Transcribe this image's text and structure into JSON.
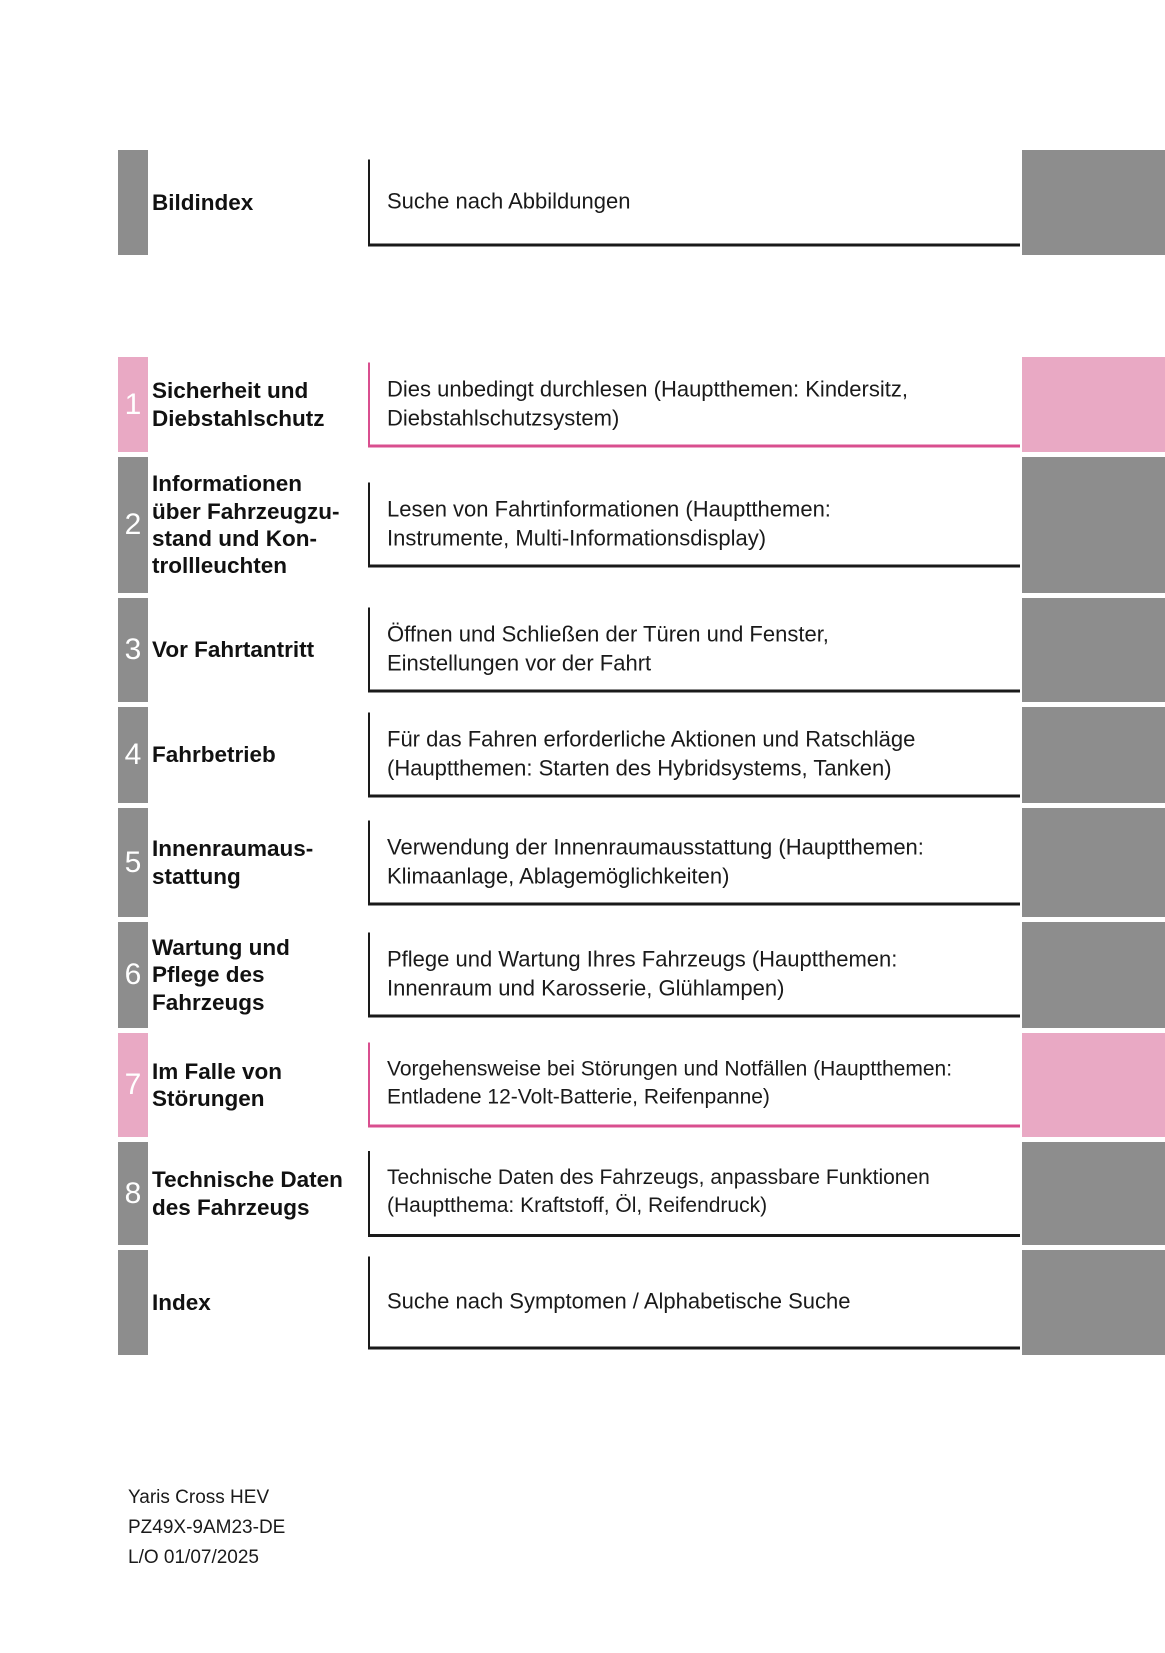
{
  "rows": [
    {
      "number": "",
      "title": "Bildindex",
      "description": "Suche nach Abbildungen",
      "accent": "gray"
    },
    {
      "number": "1",
      "title": "Sicherheit und\nDiebstahlschutz",
      "description": "Dies unbedingt durchlesen (Hauptthemen: Kindersitz,\nDiebstahlschutzsystem)",
      "accent": "pink"
    },
    {
      "number": "2",
      "title": "Informationen\nüber Fahrzeugzu-\nstand und Kon-\ntrollleuchten",
      "description": "Lesen von Fahrtinformationen (Hauptthemen:\nInstrumente, Multi-Informationsdisplay)",
      "accent": "gray"
    },
    {
      "number": "3",
      "title": "Vor Fahrtantritt",
      "description": "Öffnen und Schließen der Türen und Fenster,\nEinstellungen vor der Fahrt",
      "accent": "gray"
    },
    {
      "number": "4",
      "title": "Fahrbetrieb",
      "description": "Für das Fahren erforderliche Aktionen und Ratschläge\n(Hauptthemen: Starten des Hybridsystems, Tanken)",
      "accent": "gray"
    },
    {
      "number": "5",
      "title": "Innenraumaus-\nstattung",
      "description": "Verwendung der Innenraumausstattung (Hauptthemen:\nKlimaanlage, Ablagemöglichkeiten)",
      "accent": "gray"
    },
    {
      "number": "6",
      "title": "Wartung und\nPflege des\nFahrzeugs",
      "description": "Pflege und Wartung Ihres Fahrzeugs (Hauptthemen:\nInnenraum und Karosserie, Glühlampen)",
      "accent": "gray"
    },
    {
      "number": "7",
      "title": "Im Falle von\nStörungen",
      "description": "Vorgehensweise bei Störungen und Notfällen (Hauptthemen:\nEntladene 12-Volt-Batterie, Reifenpanne)",
      "accent": "pink"
    },
    {
      "number": "8",
      "title": "Technische Daten\ndes Fahrzeugs",
      "description": "Technische Daten des Fahrzeugs, anpassbare Funktionen\n(Hauptthema: Kraftstoff, Öl, Reifendruck)",
      "accent": "gray"
    },
    {
      "number": "",
      "title": "Index",
      "description": "Suche nach Symptomen / Alphabetische Suche",
      "accent": "gray"
    }
  ],
  "footer": {
    "model": "Yaris Cross HEV",
    "part_number": "PZ49X-9AM23-DE",
    "layout_date": "L/O 01/07/2025"
  },
  "colors": {
    "gray": "#8d8d8d",
    "pink": "#e9a9c4",
    "pink_border": "#d94f8f",
    "dark": "#1a1a1a"
  }
}
